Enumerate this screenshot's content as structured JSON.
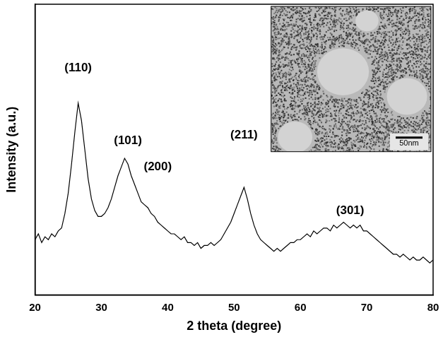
{
  "chart_data": {
    "type": "line",
    "x_label": "2 theta (degree)",
    "y_label": "Intensity (a.u.)",
    "x": [
      20,
      20.5,
      21,
      21.5,
      22,
      22.5,
      23,
      23.5,
      24,
      24.5,
      25,
      25.5,
      26,
      26.5,
      27,
      27.5,
      28,
      28.5,
      29,
      29.5,
      30,
      30.5,
      31,
      31.5,
      32,
      32.5,
      33,
      33.5,
      34,
      34.5,
      35,
      35.5,
      36,
      36.5,
      37,
      37.5,
      38,
      38.5,
      39,
      39.5,
      40,
      40.5,
      41,
      41.5,
      42,
      42.5,
      43,
      43.5,
      44,
      44.5,
      45,
      45.5,
      46,
      46.5,
      47,
      47.5,
      48,
      48.5,
      49,
      49.5,
      50,
      50.5,
      51,
      51.5,
      52,
      52.5,
      53,
      53.5,
      54,
      54.5,
      55,
      55.5,
      56,
      56.5,
      57,
      57.5,
      58,
      58.5,
      59,
      59.5,
      60,
      60.5,
      61,
      61.5,
      62,
      62.5,
      63,
      63.5,
      64,
      64.5,
      65,
      65.5,
      66,
      66.5,
      67,
      67.5,
      68,
      68.5,
      69,
      69.5,
      70,
      70.5,
      71,
      71.5,
      72,
      72.5,
      73,
      73.5,
      74,
      74.5,
      75,
      75.5,
      76,
      76.5,
      77,
      77.5,
      78,
      78.5,
      79,
      79.5,
      80
    ],
    "values": [
      19,
      21,
      18,
      20,
      19,
      21,
      20,
      22,
      23,
      28,
      35,
      45,
      56,
      66,
      60,
      50,
      40,
      33,
      29,
      27,
      27,
      28,
      30,
      33,
      37,
      41,
      44,
      47,
      45,
      41,
      38,
      35,
      32,
      31,
      30,
      28,
      27,
      25,
      24,
      23,
      22,
      21,
      21,
      20,
      19,
      20,
      18,
      18,
      17,
      18,
      16,
      17,
      17,
      18,
      17,
      18,
      19,
      21,
      23,
      25,
      28,
      31,
      34,
      37,
      33,
      28,
      24,
      21,
      19,
      18,
      17,
      16,
      15,
      16,
      15,
      16,
      17,
      18,
      18,
      19,
      19,
      20,
      21,
      20,
      22,
      21,
      22,
      23,
      23,
      22,
      24,
      23,
      24,
      25,
      24,
      23,
      24,
      23,
      24,
      22,
      22,
      21,
      20,
      19,
      18,
      17,
      16,
      15,
      14,
      14,
      13,
      14,
      13,
      12,
      13,
      12,
      12,
      13,
      12,
      11,
      12
    ],
    "color": "#000000",
    "xlim": [
      20,
      80
    ],
    "xticks": [
      20,
      30,
      40,
      50,
      60,
      70,
      80
    ],
    "ylim": [
      0,
      100
    ],
    "tick_labels": "x",
    "grid": false,
    "annotations": [
      {
        "text": "(110)",
        "x": 26.5,
        "y": 76
      },
      {
        "text": "(101)",
        "x": 34,
        "y": 51
      },
      {
        "text": "(200)",
        "x": 38.5,
        "y": 42
      },
      {
        "text": "(211)",
        "x": 51.5,
        "y": 53
      },
      {
        "text": "(301)",
        "x": 67.5,
        "y": 27
      }
    ],
    "inset": {
      "scale_bar": "50nm"
    }
  }
}
